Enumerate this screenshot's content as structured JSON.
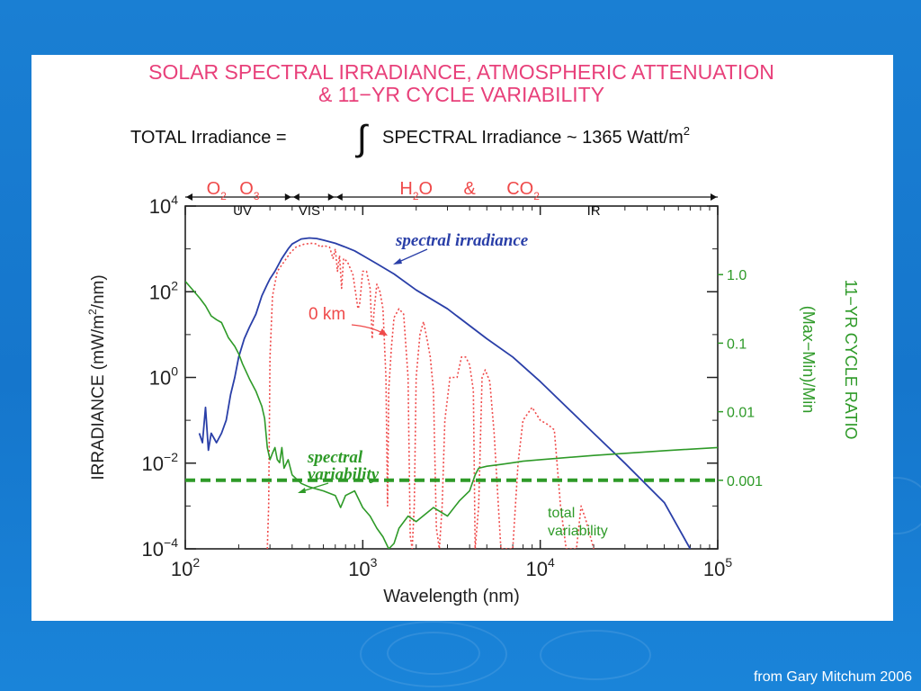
{
  "credit": "from Gary Mitchum 2006",
  "chart_data": {
    "type": "line",
    "title": [
      "SOLAR SPECTRAL IRRADIANCE, ATMOSPHERIC ATTENUATION",
      "& 11−YR CYCLE VARIABILITY"
    ],
    "equation": {
      "lhs": "TOTAL Irradiance  =",
      "integral": "∫",
      "rhs": "SPECTRAL Irradiance  ~  1365 Watt/m",
      "rhs_sup": "2"
    },
    "xlabel": "Wavelength (nm)",
    "ylabel_left": {
      "main": "IRRADIANCE  (mW/m",
      "sup": "2",
      "tail": "/nm)"
    },
    "ylabel_right": [
      "11−YR CYCLE RATIO",
      "(Max−Min)/Min"
    ],
    "xscale": "log",
    "yscale": "log",
    "xlim": [
      100,
      100000
    ],
    "ylim_left": [
      0.0001,
      10000
    ],
    "ylim_right": [
      0.0001,
      10
    ],
    "x_ticks": [
      {
        "value": 100,
        "base": "10",
        "exp": "2"
      },
      {
        "value": 1000,
        "base": "10",
        "exp": "3"
      },
      {
        "value": 10000,
        "base": "10",
        "exp": "4"
      },
      {
        "value": 100000,
        "base": "10",
        "exp": "5"
      }
    ],
    "y_ticks_left": [
      {
        "value": 0.0001,
        "base": "10",
        "exp": "−4"
      },
      {
        "value": 0.01,
        "base": "10",
        "exp": "−2"
      },
      {
        "value": 1,
        "base": "10",
        "exp": "0"
      },
      {
        "value": 100,
        "base": "10",
        "exp": "2"
      },
      {
        "value": 10000,
        "base": "10",
        "exp": "4"
      }
    ],
    "y_ticks_right": [
      {
        "value": 1,
        "label": "1.0"
      },
      {
        "value": 0.1,
        "label": "0.1"
      },
      {
        "value": 0.01,
        "label": "0.01"
      },
      {
        "value": 0.001,
        "label": "0.001"
      }
    ],
    "bands": [
      {
        "name": "UV",
        "from": 100,
        "to": 400
      },
      {
        "name": "VIS",
        "from": 400,
        "to": 700
      },
      {
        "name": "IR",
        "from": 700,
        "to": 100000
      }
    ],
    "absorbers": {
      "o2": {
        "base": "O",
        "sub": "2",
        "at": 150
      },
      "o3": {
        "base": "O",
        "sub": "3",
        "at": 230
      },
      "h2o": {
        "base": "H",
        "sub": "2",
        "tail": "O",
        "at": 2000
      },
      "amp": {
        "text": "&",
        "at": 4000
      },
      "co2": {
        "base": "CO",
        "sub": "2",
        "at": 8000
      }
    },
    "colors": {
      "title": "#e8407a",
      "spectral": "#2a3fa8",
      "surface": "#ef4a4a",
      "variability": "#2e9a28",
      "axis": "#222222",
      "bands": "#111111"
    },
    "annotations": {
      "spectral_irradiance": "spectral  irradiance",
      "zero_km": "0  km",
      "spectral_variability": [
        "spectral",
        "variability"
      ],
      "total_variability": [
        "total",
        "variability"
      ]
    },
    "series": [
      {
        "name": "spectral irradiance",
        "axis": "left",
        "color": "#2a3fa8",
        "points": [
          [
            120,
            0.05
          ],
          [
            125,
            0.03
          ],
          [
            130,
            0.2
          ],
          [
            135,
            0.02
          ],
          [
            140,
            0.05
          ],
          [
            150,
            0.03
          ],
          [
            160,
            0.05
          ],
          [
            170,
            0.1
          ],
          [
            180,
            0.4
          ],
          [
            190,
            1
          ],
          [
            200,
            3
          ],
          [
            215,
            8
          ],
          [
            230,
            15
          ],
          [
            250,
            30
          ],
          [
            270,
            80
          ],
          [
            290,
            150
          ],
          [
            300,
            200
          ],
          [
            320,
            300
          ],
          [
            350,
            600
          ],
          [
            380,
            1000
          ],
          [
            400,
            1300
          ],
          [
            450,
            1700
          ],
          [
            500,
            1800
          ],
          [
            550,
            1750
          ],
          [
            600,
            1600
          ],
          [
            700,
            1350
          ],
          [
            800,
            1100
          ],
          [
            900,
            900
          ],
          [
            1000,
            700
          ],
          [
            1200,
            450
          ],
          [
            1500,
            260
          ],
          [
            2000,
            110
          ],
          [
            3000,
            40
          ],
          [
            5000,
            8
          ],
          [
            7000,
            3
          ],
          [
            10000,
            0.8
          ],
          [
            20000,
            0.05
          ],
          [
            30000,
            0.01
          ],
          [
            50000,
            0.0012
          ],
          [
            70000,
            0.0001
          ]
        ]
      },
      {
        "name": "0 km",
        "axis": "left",
        "color": "#ef4a4a",
        "points": [
          [
            290,
            0.0001
          ],
          [
            295,
            0.001
          ],
          [
            300,
            3
          ],
          [
            310,
            80
          ],
          [
            330,
            300
          ],
          [
            360,
            500
          ],
          [
            390,
            800
          ],
          [
            420,
            1100
          ],
          [
            470,
            1300
          ],
          [
            520,
            1350
          ],
          [
            550,
            1300
          ],
          [
            580,
            1100
          ],
          [
            600,
            1200
          ],
          [
            650,
            1100
          ],
          [
            680,
            600
          ],
          [
            700,
            1000
          ],
          [
            720,
            300
          ],
          [
            740,
            700
          ],
          [
            760,
            120
          ],
          [
            780,
            600
          ],
          [
            820,
            500
          ],
          [
            880,
            250
          ],
          [
            940,
            40
          ],
          [
            960,
            50
          ],
          [
            1000,
            300
          ],
          [
            1050,
            300
          ],
          [
            1100,
            120
          ],
          [
            1130,
            8
          ],
          [
            1160,
            40
          ],
          [
            1200,
            150
          ],
          [
            1250,
            100
          ],
          [
            1300,
            40
          ],
          [
            1350,
            1
          ],
          [
            1380,
            0.001
          ],
          [
            1400,
            0.5
          ],
          [
            1450,
            5
          ],
          [
            1500,
            25
          ],
          [
            1600,
            40
          ],
          [
            1700,
            30
          ],
          [
            1800,
            1
          ],
          [
            1850,
            0.0002
          ],
          [
            1900,
            0.0001
          ],
          [
            1950,
            0.001
          ],
          [
            2000,
            1
          ],
          [
            2100,
            10
          ],
          [
            2200,
            20
          ],
          [
            2300,
            8
          ],
          [
            2400,
            3
          ],
          [
            2500,
            0.5
          ],
          [
            2600,
            0.0003
          ],
          [
            2700,
            0.0001
          ],
          [
            2800,
            0.001
          ],
          [
            2900,
            0.1
          ],
          [
            3100,
            1
          ],
          [
            3400,
            1
          ],
          [
            3600,
            3
          ],
          [
            3800,
            3
          ],
          [
            4000,
            2
          ],
          [
            4200,
            0.5
          ],
          [
            4300,
            0.0001
          ],
          [
            4500,
            0.001
          ],
          [
            4700,
            1
          ],
          [
            4900,
            1.5
          ],
          [
            5200,
            0.8
          ],
          [
            5500,
            0.05
          ],
          [
            6000,
            0.0001
          ],
          [
            7000,
            0.0001
          ],
          [
            7500,
            0.01
          ],
          [
            8000,
            0.1
          ],
          [
            9000,
            0.2
          ],
          [
            10000,
            0.1
          ],
          [
            11000,
            0.08
          ],
          [
            12000,
            0.06
          ],
          [
            13000,
            0.001
          ],
          [
            14000,
            0.0001
          ],
          [
            16000,
            0.0001
          ],
          [
            17000,
            0.001
          ],
          [
            18000,
            0.0005
          ],
          [
            20000,
            0.0001
          ]
        ]
      },
      {
        "name": "spectral variability",
        "axis": "right",
        "color": "#2e9a28",
        "points": [
          [
            100,
            0.8
          ],
          [
            110,
            0.6
          ],
          [
            121,
            0.45
          ],
          [
            130,
            0.35
          ],
          [
            140,
            0.25
          ],
          [
            150,
            0.22
          ],
          [
            160,
            0.2
          ],
          [
            175,
            0.12
          ],
          [
            190,
            0.09
          ],
          [
            200,
            0.07
          ],
          [
            210,
            0.05
          ],
          [
            230,
            0.03
          ],
          [
            250,
            0.02
          ],
          [
            270,
            0.012
          ],
          [
            280,
            0.008
          ],
          [
            290,
            0.003
          ],
          [
            300,
            0.002
          ],
          [
            310,
            0.0025
          ],
          [
            320,
            0.003
          ],
          [
            330,
            0.002
          ],
          [
            340,
            0.0018
          ],
          [
            350,
            0.003
          ],
          [
            360,
            0.0015
          ],
          [
            380,
            0.002
          ],
          [
            400,
            0.0012
          ],
          [
            450,
            0.0009
          ],
          [
            500,
            0.0008
          ],
          [
            600,
            0.0007
          ],
          [
            700,
            0.0006
          ],
          [
            750,
            0.0004
          ],
          [
            800,
            0.0006
          ],
          [
            900,
            0.0007
          ],
          [
            1000,
            0.0004
          ],
          [
            1100,
            0.0003
          ],
          [
            1200,
            0.0002
          ],
          [
            1300,
            0.00015
          ],
          [
            1400,
            0.0001
          ],
          [
            1500,
            0.00012
          ],
          [
            1600,
            0.0002
          ],
          [
            1800,
            0.0003
          ],
          [
            2000,
            0.00025
          ],
          [
            2500,
            0.0004
          ],
          [
            3000,
            0.0003
          ],
          [
            3500,
            0.0005
          ],
          [
            4000,
            0.0007
          ],
          [
            4300,
            0.0012
          ],
          [
            4500,
            0.0015
          ],
          [
            5000,
            0.0016
          ],
          [
            6000,
            0.0017
          ],
          [
            7000,
            0.0018
          ],
          [
            8000,
            0.0019
          ],
          [
            10000,
            0.002
          ],
          [
            20000,
            0.0023
          ],
          [
            50000,
            0.0027
          ],
          [
            100000,
            0.003
          ]
        ]
      },
      {
        "name": "total variability",
        "axis": "right",
        "color": "#2e9a28",
        "dashed": true,
        "points": [
          [
            100,
            0.001
          ],
          [
            100000,
            0.001
          ]
        ]
      }
    ]
  }
}
